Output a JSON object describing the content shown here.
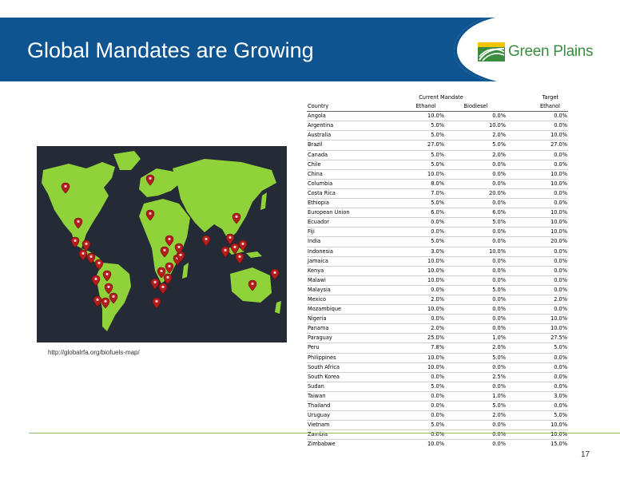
{
  "header": {
    "title": "Global Mandates are Growing",
    "logo_text": "Green Plains",
    "colors": {
      "banner": "#0d5491",
      "brand_green": "#3a8c3f",
      "rule": "#8fbf6a"
    }
  },
  "map": {
    "caption": "http://globalrfa.org/biofuels-map/",
    "icon": "map-marker-icon",
    "colors": {
      "ocean": "#242a36",
      "land": "#8fd23a",
      "marker": "#b51d1d"
    }
  },
  "table": {
    "group_headers": {
      "current_mandate": "Current Mandate",
      "target": "Target"
    },
    "columns": {
      "country": "Country",
      "ethanol": "Ethanol",
      "biodiesel": "Biodiesel",
      "target_ethanol": "Ethanol"
    },
    "rows": [
      {
        "country": "Angola",
        "ethanol": "10.0%",
        "biodiesel": "0.0%",
        "target": "0.0%"
      },
      {
        "country": "Argentina",
        "ethanol": "5.0%",
        "biodiesel": "10.0%",
        "target": "0.0%"
      },
      {
        "country": "Australia",
        "ethanol": "5.0%",
        "biodiesel": "2.0%",
        "target": "10.0%"
      },
      {
        "country": "Brazil",
        "ethanol": "27.0%",
        "biodiesel": "5.0%",
        "target": "27.0%"
      },
      {
        "country": "Canada",
        "ethanol": "5.0%",
        "biodiesel": "2.0%",
        "target": "0.0%"
      },
      {
        "country": "Chile",
        "ethanol": "5.0%",
        "biodiesel": "0.0%",
        "target": "0.0%"
      },
      {
        "country": "China",
        "ethanol": "10.0%",
        "biodiesel": "0.0%",
        "target": "10.0%"
      },
      {
        "country": "Columbia",
        "ethanol": "8.0%",
        "biodiesel": "0.0%",
        "target": "10.0%"
      },
      {
        "country": "Costa Rica",
        "ethanol": "7.0%",
        "biodiesel": "20.0%",
        "target": "0.0%"
      },
      {
        "country": "Ethiopia",
        "ethanol": "5.0%",
        "biodiesel": "0.0%",
        "target": "0.0%"
      },
      {
        "country": "European Union",
        "ethanol": "6.0%",
        "biodiesel": "6.0%",
        "target": "10.0%"
      },
      {
        "country": "Ecuador",
        "ethanol": "0.0%",
        "biodiesel": "5.0%",
        "target": "10.0%"
      },
      {
        "country": "Fiji",
        "ethanol": "0.0%",
        "biodiesel": "0.0%",
        "target": "10.0%"
      },
      {
        "country": "India",
        "ethanol": "5.0%",
        "biodiesel": "0.0%",
        "target": "20.0%"
      },
      {
        "country": "Indonesia",
        "ethanol": "3.0%",
        "biodiesel": "10.0%",
        "target": "0.0%"
      },
      {
        "country": "Jamaica",
        "ethanol": "10.0%",
        "biodiesel": "0.0%",
        "target": "0.0%"
      },
      {
        "country": "Kenya",
        "ethanol": "10.0%",
        "biodiesel": "0.0%",
        "target": "0.0%"
      },
      {
        "country": "Malawi",
        "ethanol": "10.0%",
        "biodiesel": "0.0%",
        "target": "0.0%"
      },
      {
        "country": "Malaysia",
        "ethanol": "0.0%",
        "biodiesel": "5.0%",
        "target": "0.0%"
      },
      {
        "country": "Mexico",
        "ethanol": "2.0%",
        "biodiesel": "0.0%",
        "target": "2.0%"
      },
      {
        "country": "Mozambique",
        "ethanol": "10.0%",
        "biodiesel": "0.0%",
        "target": "0.0%"
      },
      {
        "country": "Nigeria",
        "ethanol": "0.0%",
        "biodiesel": "0.0%",
        "target": "10.0%"
      },
      {
        "country": "Panama",
        "ethanol": "2.0%",
        "biodiesel": "0.0%",
        "target": "10.0%"
      },
      {
        "country": "Paraguay",
        "ethanol": "25.0%",
        "biodiesel": "1.0%",
        "target": "27.5%"
      },
      {
        "country": "Peru",
        "ethanol": "7.8%",
        "biodiesel": "2.0%",
        "target": "5.0%"
      },
      {
        "country": "Philippines",
        "ethanol": "10.0%",
        "biodiesel": "5.0%",
        "target": "0.0%"
      },
      {
        "country": "South Africa",
        "ethanol": "10.0%",
        "biodiesel": "0.0%",
        "target": "0.0%"
      },
      {
        "country": "South Korea",
        "ethanol": "0.0%",
        "biodiesel": "2.5%",
        "target": "0.0%"
      },
      {
        "country": "Sudan",
        "ethanol": "5.0%",
        "biodiesel": "0.0%",
        "target": "0.0%"
      },
      {
        "country": "Taiwan",
        "ethanol": "0.0%",
        "biodiesel": "1.0%",
        "target": "3.0%"
      },
      {
        "country": "Thailand",
        "ethanol": "0.0%",
        "biodiesel": "5.0%",
        "target": "0.0%"
      },
      {
        "country": "Uruguay",
        "ethanol": "0.0%",
        "biodiesel": "2.0%",
        "target": "5.0%"
      },
      {
        "country": "Vietnam",
        "ethanol": "5.0%",
        "biodiesel": "0.0%",
        "target": "10.0%"
      },
      {
        "country": "Zambia",
        "ethanol": "0.0%",
        "biodiesel": "0.0%",
        "target": "10.0%"
      },
      {
        "country": "Zimbabwe",
        "ethanol": "10.0%",
        "biodiesel": "0.0%",
        "target": "15.0%"
      }
    ]
  },
  "footer": {
    "page_number": "17"
  }
}
